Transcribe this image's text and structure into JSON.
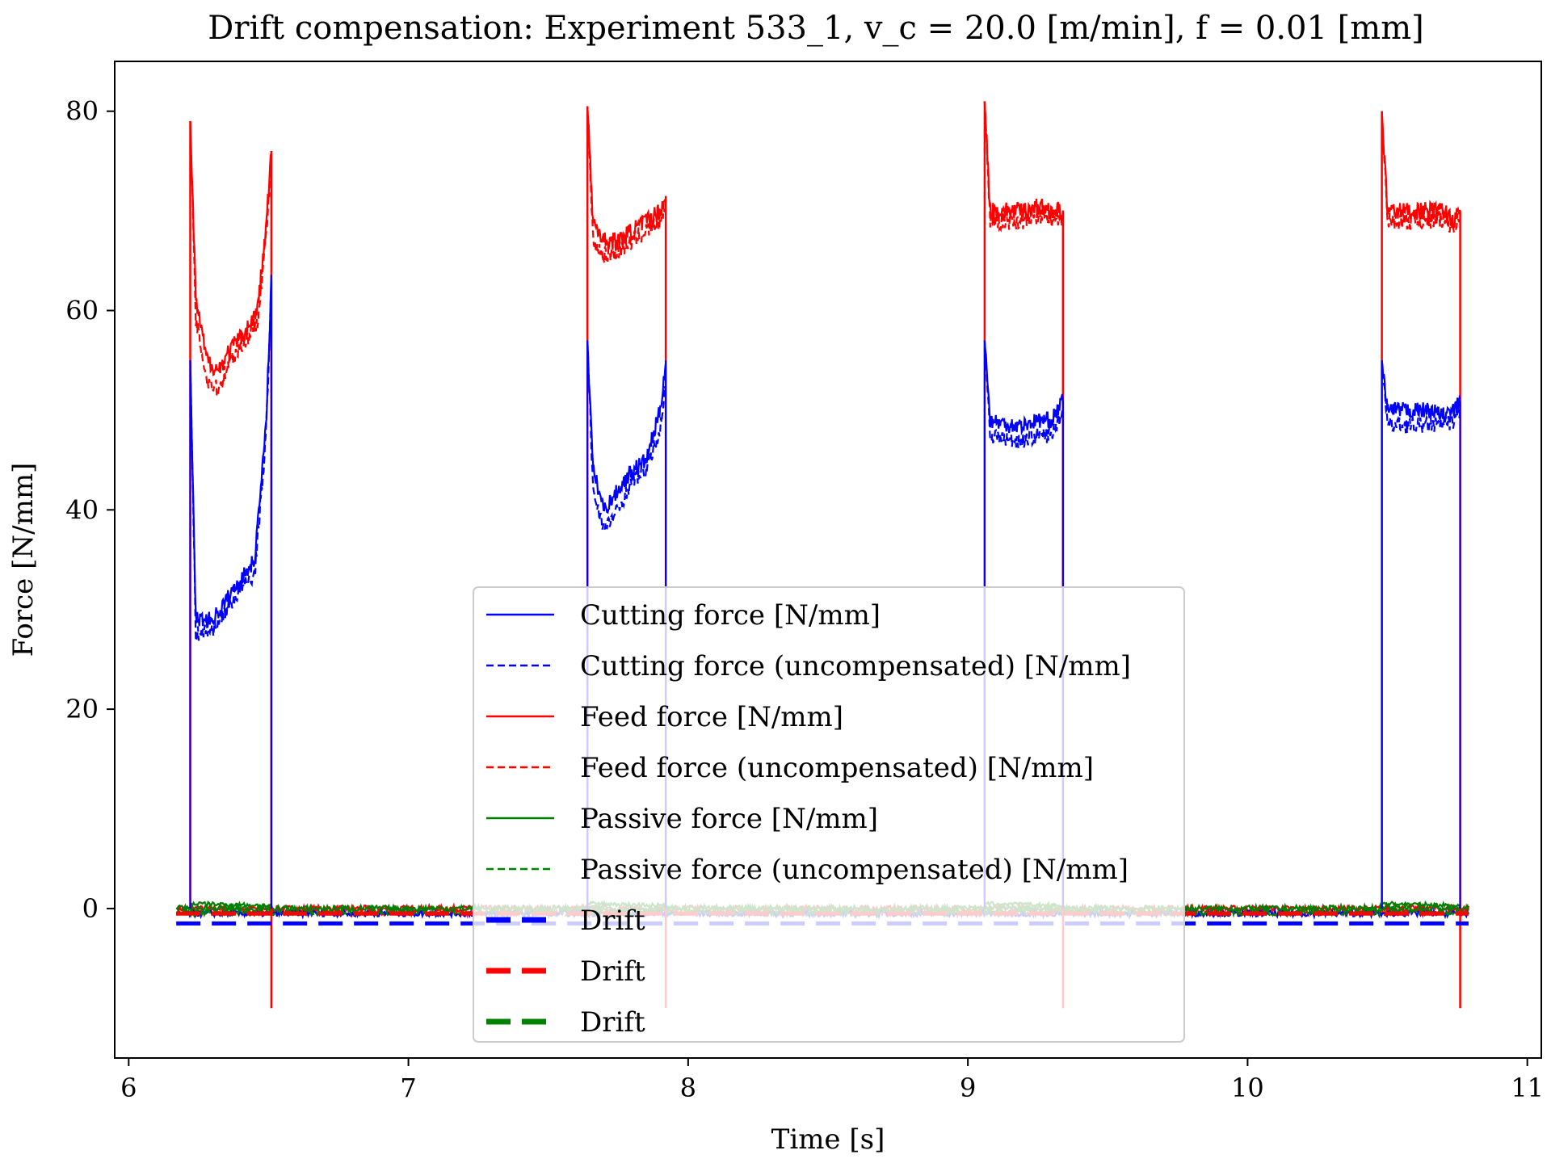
{
  "chart_data": {
    "type": "line",
    "title": "Drift compensation: Experiment 533_1, v_c = 20.0 [m/min], f = 0.01 [mm]",
    "xlabel": "Time [s]",
    "ylabel": "Force [N/mm]",
    "xlim": [
      5.95,
      11.05
    ],
    "ylim": [
      -15,
      85
    ],
    "xticks": [
      6,
      7,
      8,
      9,
      10,
      11
    ],
    "yticks": [
      0,
      20,
      40,
      60,
      80
    ],
    "grid": false,
    "legend_position": "lower-center",
    "colors": {
      "cutting": "#0000ff",
      "feed": "#ff0000",
      "passive": "#008000"
    },
    "segments": [
      {
        "start": 6.22,
        "end": 6.51,
        "cutting": [
          [
            6.22,
            55
          ],
          [
            6.24,
            29
          ],
          [
            6.3,
            29
          ],
          [
            6.35,
            31
          ],
          [
            6.4,
            33
          ],
          [
            6.45,
            35
          ],
          [
            6.49,
            48
          ],
          [
            6.51,
            63
          ]
        ],
        "cutting_uncompensated": [
          [
            6.22,
            55
          ],
          [
            6.24,
            27.5
          ],
          [
            6.3,
            28
          ],
          [
            6.35,
            30
          ],
          [
            6.4,
            32
          ],
          [
            6.45,
            33.5
          ],
          [
            6.49,
            47
          ],
          [
            6.51,
            62
          ]
        ],
        "feed": [
          [
            6.22,
            79
          ],
          [
            6.24,
            61
          ],
          [
            6.28,
            55
          ],
          [
            6.32,
            54
          ],
          [
            6.36,
            56
          ],
          [
            6.42,
            58
          ],
          [
            6.46,
            60
          ],
          [
            6.49,
            68
          ],
          [
            6.51,
            76
          ]
        ],
        "feed_uncompensated": [
          [
            6.22,
            79
          ],
          [
            6.24,
            59
          ],
          [
            6.28,
            53
          ],
          [
            6.32,
            52
          ],
          [
            6.36,
            55
          ],
          [
            6.42,
            57
          ],
          [
            6.46,
            59
          ],
          [
            6.49,
            67
          ],
          [
            6.51,
            75
          ]
        ],
        "spike_down": -10
      },
      {
        "start": 7.64,
        "end": 7.92,
        "cutting": [
          [
            7.64,
            57
          ],
          [
            7.66,
            44
          ],
          [
            7.7,
            40
          ],
          [
            7.75,
            42
          ],
          [
            7.8,
            44
          ],
          [
            7.85,
            45
          ],
          [
            7.9,
            50
          ],
          [
            7.92,
            55
          ]
        ],
        "cutting_uncompensated": [
          [
            7.64,
            57
          ],
          [
            7.66,
            42
          ],
          [
            7.7,
            38
          ],
          [
            7.75,
            40
          ],
          [
            7.8,
            43
          ],
          [
            7.85,
            44
          ],
          [
            7.9,
            48
          ],
          [
            7.92,
            53
          ]
        ],
        "feed": [
          [
            7.64,
            80.5
          ],
          [
            7.66,
            69
          ],
          [
            7.7,
            67
          ],
          [
            7.75,
            67
          ],
          [
            7.8,
            68
          ],
          [
            7.85,
            69
          ],
          [
            7.9,
            70
          ],
          [
            7.92,
            71.5
          ]
        ],
        "feed_uncompensated": [
          [
            7.64,
            80.5
          ],
          [
            7.66,
            67
          ],
          [
            7.7,
            65.5
          ],
          [
            7.75,
            66
          ],
          [
            7.8,
            67
          ],
          [
            7.85,
            68
          ],
          [
            7.9,
            69
          ],
          [
            7.92,
            71
          ]
        ],
        "spike_down": -10
      },
      {
        "start": 9.06,
        "end": 9.34,
        "cutting": [
          [
            9.06,
            57
          ],
          [
            9.08,
            49
          ],
          [
            9.15,
            48.5
          ],
          [
            9.2,
            48.5
          ],
          [
            9.25,
            49
          ],
          [
            9.3,
            49
          ],
          [
            9.34,
            51
          ]
        ],
        "cutting_uncompensated": [
          [
            9.06,
            57
          ],
          [
            9.08,
            47.5
          ],
          [
            9.15,
            47
          ],
          [
            9.2,
            47
          ],
          [
            9.25,
            47.5
          ],
          [
            9.3,
            47.5
          ],
          [
            9.34,
            50
          ]
        ],
        "feed": [
          [
            9.06,
            81
          ],
          [
            9.08,
            70
          ],
          [
            9.15,
            70
          ],
          [
            9.2,
            70
          ],
          [
            9.25,
            70.5
          ],
          [
            9.3,
            70
          ],
          [
            9.34,
            70
          ]
        ],
        "feed_uncompensated": [
          [
            9.06,
            81
          ],
          [
            9.08,
            69
          ],
          [
            9.15,
            69
          ],
          [
            9.2,
            69
          ],
          [
            9.25,
            69.5
          ],
          [
            9.3,
            69
          ],
          [
            9.34,
            69
          ]
        ],
        "spike_down": -10
      },
      {
        "start": 10.48,
        "end": 10.76,
        "cutting": [
          [
            10.48,
            55
          ],
          [
            10.5,
            50
          ],
          [
            10.55,
            50
          ],
          [
            10.6,
            50
          ],
          [
            10.65,
            50
          ],
          [
            10.7,
            49.5
          ],
          [
            10.74,
            50
          ],
          [
            10.76,
            51
          ]
        ],
        "cutting_uncompensated": [
          [
            10.48,
            55
          ],
          [
            10.5,
            48.5
          ],
          [
            10.55,
            48.5
          ],
          [
            10.6,
            48.5
          ],
          [
            10.65,
            48.5
          ],
          [
            10.7,
            48.5
          ],
          [
            10.74,
            49
          ],
          [
            10.76,
            50
          ]
        ],
        "feed": [
          [
            10.48,
            80
          ],
          [
            10.5,
            70
          ],
          [
            10.55,
            70
          ],
          [
            10.6,
            70
          ],
          [
            10.65,
            70
          ],
          [
            10.7,
            70
          ],
          [
            10.74,
            69
          ],
          [
            10.76,
            70
          ]
        ],
        "feed_uncompensated": [
          [
            10.48,
            80
          ],
          [
            10.5,
            69
          ],
          [
            10.55,
            69
          ],
          [
            10.6,
            69
          ],
          [
            10.65,
            69
          ],
          [
            10.7,
            69
          ],
          [
            10.74,
            68.5
          ],
          [
            10.76,
            69.5
          ]
        ],
        "spike_down": -10
      }
    ],
    "baseline": {
      "x_start": 6.17,
      "x_end": 10.79,
      "feed": 0,
      "cutting": -0.5,
      "passive": 0,
      "passive_in_cut": 0.5
    },
    "drift": {
      "cutting": -1.5,
      "feed": -0.5,
      "passive": -0.5
    },
    "series": [
      {
        "name": "Cutting force [N/mm]",
        "color": "#0000ff",
        "style": "solid"
      },
      {
        "name": "Cutting force (uncompensated) [N/mm]",
        "color": "#0000ff",
        "style": "dashed"
      },
      {
        "name": "Feed force [N/mm]",
        "color": "#ff0000",
        "style": "solid"
      },
      {
        "name": "Feed force (uncompensated) [N/mm]",
        "color": "#ff0000",
        "style": "dashed"
      },
      {
        "name": "Passive force [N/mm]",
        "color": "#008000",
        "style": "solid"
      },
      {
        "name": "Passive force (uncompensated) [N/mm]",
        "color": "#008000",
        "style": "dashed"
      },
      {
        "name": "Drift",
        "color": "#0000ff",
        "style": "thick-dashed"
      },
      {
        "name": "Drift",
        "color": "#ff0000",
        "style": "thick-dashed"
      },
      {
        "name": "Drift",
        "color": "#008000",
        "style": "thick-dashed"
      }
    ]
  }
}
